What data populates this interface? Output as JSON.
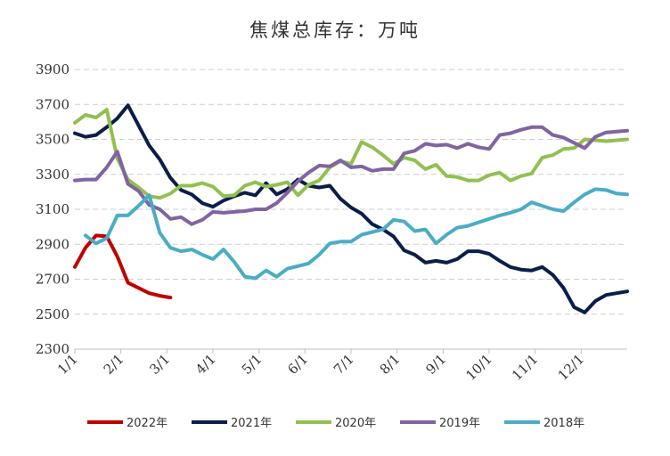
{
  "chart_data": {
    "type": "line",
    "title": "焦煤总库存：万吨",
    "xlabel": "",
    "ylabel": "",
    "ylim": [
      2300,
      3900
    ],
    "yticks": [
      2300,
      2500,
      2700,
      2900,
      3100,
      3300,
      3500,
      3700,
      3900
    ],
    "x_categories": [
      "1/1",
      "2/1",
      "3/1",
      "4/1",
      "5/1",
      "6/1",
      "7/1",
      "8/1",
      "9/1",
      "10/1",
      "11/1",
      "12/1"
    ],
    "x_unit": "week of year (1 = 1/1)",
    "x_range": [
      1,
      53
    ],
    "grid": "horizontal dashed",
    "legend_position": "bottom",
    "series": [
      {
        "name": "2022年",
        "color": "#c00000",
        "x": [
          1,
          2,
          3,
          4,
          5,
          6,
          7,
          8,
          9,
          10
        ],
        "values": [
          2770,
          2880,
          2950,
          2945,
          2830,
          2680,
          2650,
          2620,
          2605,
          2595
        ]
      },
      {
        "name": "2021年",
        "color": "#0b1e4a",
        "x": [
          1,
          2,
          3,
          4,
          5,
          6,
          7,
          8,
          9,
          10,
          11,
          12,
          13,
          14,
          15,
          16,
          17,
          18,
          19,
          20,
          21,
          22,
          23,
          24,
          25,
          26,
          27,
          28,
          29,
          30,
          31,
          32,
          33,
          34,
          35,
          36,
          37,
          38,
          39,
          40,
          41,
          42,
          43,
          44,
          45,
          46,
          47,
          48,
          49,
          50,
          51,
          52,
          53
        ],
        "values": [
          3535,
          3515,
          3525,
          3570,
          3620,
          3695,
          3580,
          3465,
          3385,
          3280,
          3210,
          3185,
          3135,
          3115,
          3150,
          3175,
          3195,
          3180,
          3250,
          3185,
          3215,
          3270,
          3235,
          3225,
          3235,
          3160,
          3110,
          3075,
          3015,
          2985,
          2945,
          2865,
          2840,
          2795,
          2805,
          2795,
          2815,
          2860,
          2860,
          2845,
          2805,
          2770,
          2755,
          2750,
          2770,
          2725,
          2650,
          2540,
          2510,
          2575,
          2610,
          2620,
          2630
        ]
      },
      {
        "name": "2020年",
        "color": "#92c050",
        "x": [
          1,
          2,
          3,
          4,
          5,
          6,
          7,
          8,
          9,
          10,
          11,
          12,
          13,
          14,
          15,
          16,
          17,
          18,
          19,
          20,
          21,
          22,
          23,
          24,
          25,
          26,
          27,
          28,
          29,
          30,
          31,
          32,
          33,
          34,
          35,
          36,
          37,
          38,
          39,
          40,
          41,
          42,
          43,
          44,
          45,
          46,
          47,
          48,
          49,
          50,
          51,
          52,
          53
        ],
        "values": [
          3595,
          3640,
          3625,
          3670,
          3390,
          3270,
          3225,
          3175,
          3165,
          3190,
          3235,
          3235,
          3250,
          3230,
          3175,
          3180,
          3235,
          3255,
          3230,
          3240,
          3255,
          3180,
          3240,
          3265,
          3340,
          3375,
          3360,
          3485,
          3455,
          3410,
          3360,
          3395,
          3380,
          3330,
          3355,
          3290,
          3285,
          3265,
          3265,
          3295,
          3310,
          3265,
          3290,
          3305,
          3395,
          3410,
          3445,
          3450,
          3500,
          3495,
          3490,
          3495,
          3500
        ]
      },
      {
        "name": "2019年",
        "color": "#8064a2",
        "x": [
          1,
          2,
          3,
          4,
          5,
          6,
          7,
          8,
          9,
          10,
          11,
          12,
          13,
          14,
          15,
          16,
          17,
          18,
          19,
          20,
          21,
          22,
          23,
          24,
          25,
          26,
          27,
          28,
          29,
          30,
          31,
          32,
          33,
          34,
          35,
          36,
          37,
          38,
          39,
          40,
          41,
          42,
          43,
          44,
          45,
          46,
          47,
          48,
          49,
          50,
          51,
          52,
          53
        ],
        "values": [
          3265,
          3270,
          3270,
          3340,
          3430,
          3245,
          3205,
          3125,
          3100,
          3045,
          3055,
          3015,
          3040,
          3085,
          3080,
          3085,
          3090,
          3100,
          3100,
          3135,
          3195,
          3260,
          3310,
          3350,
          3345,
          3380,
          3340,
          3345,
          3320,
          3330,
          3330,
          3420,
          3435,
          3475,
          3465,
          3470,
          3450,
          3475,
          3455,
          3445,
          3525,
          3535,
          3555,
          3570,
          3570,
          3525,
          3510,
          3480,
          3450,
          3515,
          3540,
          3545,
          3550
        ]
      },
      {
        "name": "2018年",
        "color": "#4bacc6",
        "x": [
          2,
          3,
          4,
          5,
          6,
          7,
          8,
          9,
          10,
          11,
          12,
          13,
          14,
          15,
          16,
          17,
          18,
          19,
          20,
          21,
          22,
          23,
          24,
          25,
          26,
          27,
          28,
          29,
          30,
          31,
          32,
          33,
          34,
          35,
          36,
          37,
          38,
          39,
          40,
          41,
          42,
          43,
          44,
          45,
          46,
          47,
          48,
          49,
          50,
          51,
          52,
          53
        ],
        "values": [
          2950,
          2905,
          2935,
          3065,
          3065,
          3120,
          3180,
          2965,
          2880,
          2860,
          2870,
          2840,
          2815,
          2870,
          2800,
          2715,
          2705,
          2750,
          2715,
          2760,
          2775,
          2790,
          2840,
          2905,
          2915,
          2915,
          2955,
          2970,
          2985,
          3040,
          3030,
          2975,
          2985,
          2905,
          2955,
          2995,
          3005,
          3025,
          3045,
          3065,
          3080,
          3100,
          3140,
          3120,
          3100,
          3090,
          3140,
          3185,
          3215,
          3210,
          3190,
          3185
        ]
      }
    ]
  }
}
